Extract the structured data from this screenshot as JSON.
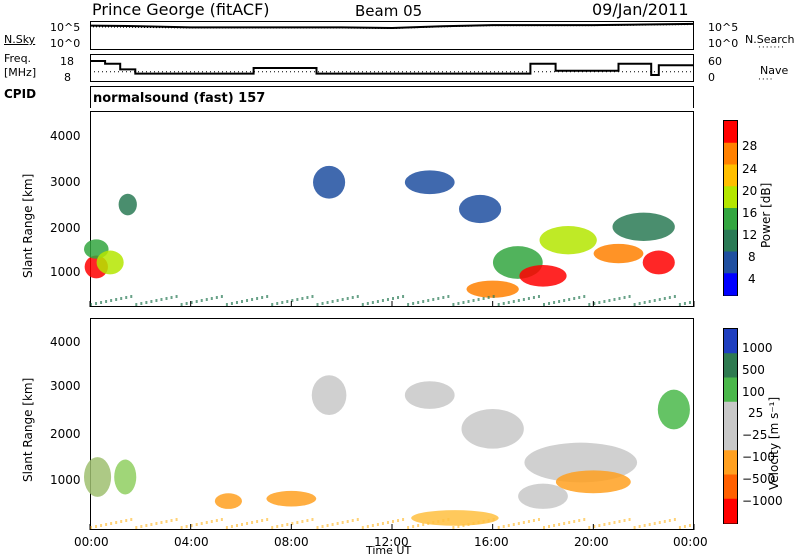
{
  "header": {
    "station": "Prince George (fitACF)",
    "beam": "Beam 05",
    "date": "09/Jan/2011"
  },
  "strip_labels": {
    "nsky": "N.Sky",
    "nsky_ticks": [
      "10^5",
      "10^0"
    ],
    "nsearch": "N.Search",
    "nsearch_ticks": [
      "10^5",
      "10^0"
    ],
    "freq": "Freq.",
    "freq_unit": "[MHz]",
    "freq_ticks": [
      "18",
      "8"
    ],
    "nave": "Nave",
    "nave_ticks": [
      "60",
      "0"
    ],
    "cpid": "CPID",
    "cpid_value": "normalsound (fast) 157"
  },
  "chart_data": [
    {
      "type": "line",
      "name": "nsky-nsearch",
      "x_ticks": [],
      "series_nsky": [
        4.2,
        4.1,
        3.9,
        3.9,
        3.9,
        3.9,
        3.8,
        4.1,
        4.3,
        4.3,
        4.3,
        4.4,
        4.5
      ],
      "series_nsearch": [
        4.0,
        3.9,
        3.8,
        3.8,
        3.8,
        3.8,
        3.7,
        4.0,
        4.2,
        4.2,
        4.2,
        4.3,
        4.4
      ]
    },
    {
      "type": "line",
      "name": "frequency-nave",
      "freq_steps": [
        {
          "t0": 0.0,
          "t1": 0.6,
          "f": 15.5
        },
        {
          "t0": 0.6,
          "t1": 1.2,
          "f": 14.5
        },
        {
          "t0": 1.2,
          "t1": 1.8,
          "f": 12.5
        },
        {
          "t0": 1.8,
          "t1": 6.5,
          "f": 11.0
        },
        {
          "t0": 6.5,
          "t1": 9.0,
          "f": 13.0
        },
        {
          "t0": 9.0,
          "t1": 17.5,
          "f": 11.0
        },
        {
          "t0": 17.5,
          "t1": 18.5,
          "f": 14.5
        },
        {
          "t0": 18.5,
          "t1": 21.0,
          "f": 12.0
        },
        {
          "t0": 21.0,
          "t1": 22.3,
          "f": 14.5
        },
        {
          "t0": 22.3,
          "t1": 22.6,
          "f": 10.5
        },
        {
          "t0": 22.6,
          "t1": 24.0,
          "f": 14.0
        }
      ],
      "nave_level": 22
    },
    {
      "type": "heatmap",
      "name": "power",
      "ylabel": "Slant Range [km]",
      "yticks": [
        "4000",
        "3000",
        "2000",
        "1000"
      ],
      "ylim": [
        200,
        4600
      ],
      "xlim": [
        0,
        24
      ],
      "colorbar_label": "Power [dB]",
      "colorbar_ticks": [
        "28",
        "24",
        "20",
        "16",
        "12",
        "8",
        "4"
      ],
      "colorbar_colors": [
        "#ff0000",
        "#ff8000",
        "#ffbf00",
        "#b4e600",
        "#33a640",
        "#2a7a55",
        "#1f4fa0",
        "#0000ff"
      ],
      "blobs": [
        {
          "t": 0.25,
          "r": 1100,
          "w": 0.45,
          "h": 380,
          "c": 0
        },
        {
          "t": 0.25,
          "r": 1500,
          "w": 0.5,
          "h": 300,
          "c": 4
        },
        {
          "t": 0.8,
          "r": 1200,
          "w": 0.6,
          "h": 400,
          "c": 3
        },
        {
          "t": 1.5,
          "r": 2500,
          "w": 0.25,
          "h": 350,
          "c": 5
        },
        {
          "t": 9.5,
          "r": 3000,
          "w": 0.8,
          "h": 600,
          "c": 6
        },
        {
          "t": 13.5,
          "r": 3000,
          "w": 1.5,
          "h": 400,
          "c": 6
        },
        {
          "t": 15.5,
          "r": 2400,
          "w": 1.2,
          "h": 500,
          "c": 6
        },
        {
          "t": 17.0,
          "r": 1200,
          "w": 1.5,
          "h": 600,
          "c": 4
        },
        {
          "t": 18.0,
          "r": 900,
          "w": 1.4,
          "h": 350,
          "c": 0
        },
        {
          "t": 19.0,
          "r": 1700,
          "w": 1.8,
          "h": 500,
          "c": 3
        },
        {
          "t": 21.0,
          "r": 1400,
          "w": 1.5,
          "h": 300,
          "c": 1
        },
        {
          "t": 22.6,
          "r": 1200,
          "w": 0.8,
          "h": 400,
          "c": 0
        },
        {
          "t": 22.0,
          "r": 2000,
          "w": 2.0,
          "h": 500,
          "c": 5
        },
        {
          "t": 16.0,
          "r": 600,
          "w": 1.6,
          "h": 250,
          "c": 1
        }
      ]
    },
    {
      "type": "heatmap",
      "name": "velocity",
      "ylabel": "Slant Range [km]",
      "yticks": [
        "4000",
        "3000",
        "2000",
        "1000"
      ],
      "ylim": [
        200,
        4600
      ],
      "xlim": [
        0,
        24
      ],
      "xticks": [
        "00:00",
        "04:00",
        "08:00",
        "12:00",
        "16:00",
        "20:00",
        "00:00"
      ],
      "xlabel": "Time UT",
      "colorbar_label": "Velocity [m s⁻¹]",
      "colorbar_ticks": [
        "1000",
        "500",
        "100",
        "25",
        "−25",
        "−100",
        "−500",
        "−1000"
      ],
      "colorbar_colors": [
        "#1f3fc0",
        "#2e7a50",
        "#4ab84a",
        "#c8c8c8",
        "#c8c8c8",
        "#ffa020",
        "#ff6000",
        "#ff0000"
      ],
      "blobs": [
        {
          "t": 0.3,
          "r": 1300,
          "w": 0.6,
          "h": 700,
          "c": "#9fc070"
        },
        {
          "t": 1.4,
          "r": 1300,
          "w": 0.4,
          "h": 600,
          "c": "#8fcf60"
        },
        {
          "t": 5.5,
          "r": 800,
          "w": 0.6,
          "h": 200,
          "c": "#ffa020"
        },
        {
          "t": 8.0,
          "r": 850,
          "w": 1.5,
          "h": 200,
          "c": "#ffa020"
        },
        {
          "t": 9.5,
          "r": 3000,
          "w": 0.9,
          "h": 700,
          "c": "#c8c8c8"
        },
        {
          "t": 13.5,
          "r": 3000,
          "w": 1.5,
          "h": 450,
          "c": "#c8c8c8"
        },
        {
          "t": 16.0,
          "r": 2300,
          "w": 2.0,
          "h": 700,
          "c": "#c8c8c8"
        },
        {
          "t": 19.5,
          "r": 1600,
          "w": 4.0,
          "h": 700,
          "c": "#c8c8c8"
        },
        {
          "t": 18.0,
          "r": 900,
          "w": 1.5,
          "h": 400,
          "c": "#c8c8c8"
        },
        {
          "t": 20.0,
          "r": 1200,
          "w": 2.5,
          "h": 350,
          "c": "#ffa020"
        },
        {
          "t": 23.2,
          "r": 2700,
          "w": 0.8,
          "h": 700,
          "c": "#4ab84a"
        },
        {
          "t": 14.5,
          "r": 450,
          "w": 3.0,
          "h": 200,
          "c": "#ffc040"
        }
      ]
    }
  ]
}
